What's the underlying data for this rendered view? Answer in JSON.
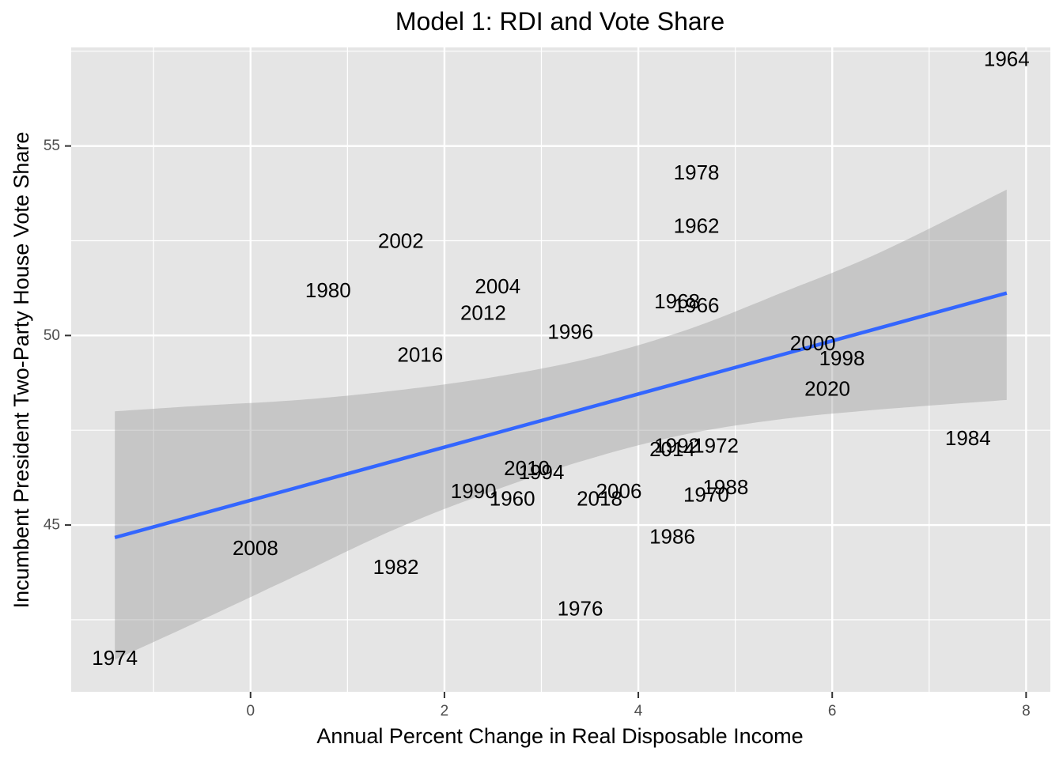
{
  "chart_data": {
    "type": "scatter",
    "title": "Model 1: RDI and Vote Share",
    "xlabel": "Annual Percent Change in Real Disposable Income",
    "ylabel": "Incumbent President Two-Party House Vote Share",
    "xlim": [
      -1.85,
      8.25
    ],
    "ylim": [
      40.6,
      57.6
    ],
    "x_ticks": [
      0,
      2,
      4,
      6,
      8
    ],
    "y_ticks": [
      45,
      50,
      55
    ],
    "grid": true,
    "panel_background": "#e5e5e5",
    "grid_color": "#ffffff",
    "text_labels": true,
    "points": [
      {
        "label": "1960",
        "x": 2.7,
        "y": 45.7
      },
      {
        "label": "1962",
        "x": 4.6,
        "y": 52.9
      },
      {
        "label": "1964",
        "x": 7.8,
        "y": 57.3
      },
      {
        "label": "1966",
        "x": 4.6,
        "y": 50.8
      },
      {
        "label": "1968",
        "x": 4.4,
        "y": 50.9
      },
      {
        "label": "1970",
        "x": 4.7,
        "y": 45.8
      },
      {
        "label": "1972",
        "x": 4.8,
        "y": 47.1
      },
      {
        "label": "1974",
        "x": -1.4,
        "y": 41.5
      },
      {
        "label": "1976",
        "x": 3.4,
        "y": 42.8
      },
      {
        "label": "1978",
        "x": 4.6,
        "y": 54.3
      },
      {
        "label": "1980",
        "x": 0.8,
        "y": 51.2
      },
      {
        "label": "1982",
        "x": 1.5,
        "y": 43.9
      },
      {
        "label": "1984",
        "x": 7.4,
        "y": 47.3
      },
      {
        "label": "1986",
        "x": 4.35,
        "y": 44.7
      },
      {
        "label": "1988",
        "x": 4.9,
        "y": 46.0
      },
      {
        "label": "1990",
        "x": 2.3,
        "y": 45.9
      },
      {
        "label": "1992",
        "x": 4.4,
        "y": 47.1
      },
      {
        "label": "1994",
        "x": 3.0,
        "y": 46.4
      },
      {
        "label": "1996",
        "x": 3.3,
        "y": 50.1
      },
      {
        "label": "1998",
        "x": 6.1,
        "y": 49.4
      },
      {
        "label": "2000",
        "x": 5.8,
        "y": 49.8
      },
      {
        "label": "2002",
        "x": 1.55,
        "y": 52.5
      },
      {
        "label": "2004",
        "x": 2.55,
        "y": 51.3
      },
      {
        "label": "2006",
        "x": 3.8,
        "y": 45.9
      },
      {
        "label": "2008",
        "x": 0.05,
        "y": 44.4
      },
      {
        "label": "2010",
        "x": 2.85,
        "y": 46.5
      },
      {
        "label": "2012",
        "x": 2.4,
        "y": 50.6
      },
      {
        "label": "2014",
        "x": 4.35,
        "y": 47.0
      },
      {
        "label": "2016",
        "x": 1.75,
        "y": 49.5
      },
      {
        "label": "2018",
        "x": 3.6,
        "y": 45.7
      },
      {
        "label": "2020",
        "x": 5.95,
        "y": 48.6
      }
    ],
    "regression_line": {
      "color": "#3366ff",
      "x": [
        -1.4,
        7.8
      ],
      "y": [
        44.67,
        51.12
      ]
    },
    "confidence_band": {
      "color": "#999999",
      "x": [
        -1.4,
        -0.5,
        0.5,
        1.5,
        2.5,
        3.5,
        4.5,
        5.5,
        6.5,
        7.8
      ],
      "lower": [
        41.45,
        42.5,
        43.7,
        44.9,
        45.9,
        46.75,
        47.4,
        47.8,
        48.05,
        48.3
      ],
      "upper": [
        48.0,
        48.15,
        48.3,
        48.55,
        48.9,
        49.4,
        50.15,
        51.15,
        52.2,
        53.85
      ]
    }
  }
}
